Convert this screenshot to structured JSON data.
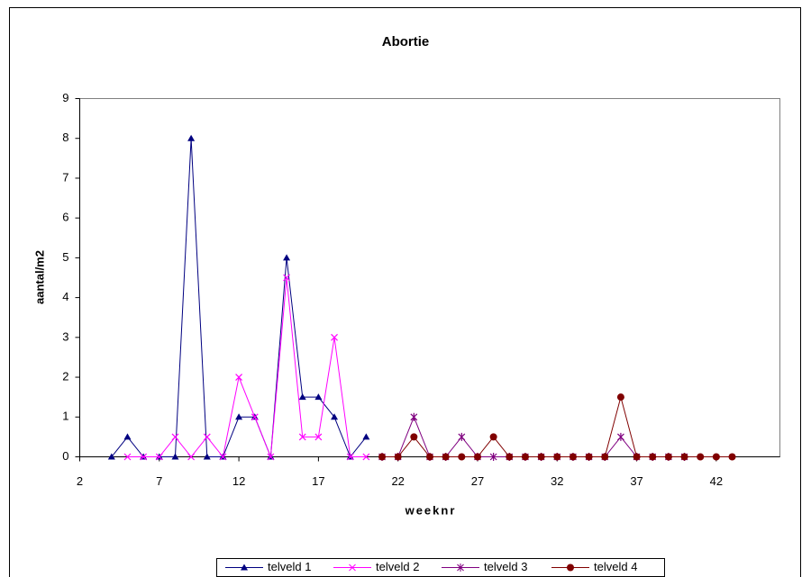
{
  "chart_data": {
    "type": "line",
    "title": "Abortie",
    "x_label": "weeknr",
    "y_label": "aantal/m2",
    "x": [
      4,
      5,
      6,
      7,
      8,
      9,
      10,
      11,
      12,
      13,
      14,
      15,
      16,
      17,
      18,
      19,
      20,
      21,
      22,
      23,
      24,
      25,
      26,
      27,
      28,
      29,
      30,
      31,
      32,
      33,
      34,
      35,
      36,
      37,
      38,
      39,
      40,
      41,
      42,
      43
    ],
    "series": [
      {
        "name": "telveld 1",
        "color": "#000080",
        "marker": "triangle",
        "values": [
          0,
          0.5,
          0,
          0,
          0,
          8,
          0,
          0,
          1,
          1,
          0,
          5,
          1.5,
          1.5,
          1,
          0,
          0.5,
          null,
          null,
          null,
          null,
          null,
          null,
          null,
          null,
          null,
          null,
          null,
          null,
          null,
          null,
          null,
          null,
          null,
          null,
          null,
          null,
          null,
          null,
          null
        ]
      },
      {
        "name": "telveld 2",
        "color": "#ff00ff",
        "marker": "x",
        "values": [
          null,
          0,
          0,
          0,
          0.5,
          0,
          0.5,
          0,
          2,
          1,
          0,
          4.5,
          0.5,
          0.5,
          3,
          0,
          0,
          null,
          null,
          null,
          null,
          null,
          null,
          null,
          null,
          null,
          null,
          null,
          null,
          null,
          null,
          null,
          null,
          null,
          null,
          null,
          null,
          null,
          null,
          null
        ]
      },
      {
        "name": "telveld 3",
        "color": "#800080",
        "marker": "star",
        "values": [
          null,
          null,
          null,
          null,
          null,
          null,
          null,
          null,
          null,
          null,
          null,
          null,
          null,
          null,
          null,
          null,
          null,
          0,
          0,
          1,
          0,
          0,
          0.5,
          0,
          0,
          0,
          0,
          0,
          0,
          0,
          0,
          0,
          0.5,
          0,
          0,
          0,
          0,
          null,
          null,
          null
        ]
      },
      {
        "name": "telveld 4",
        "color": "#800000",
        "marker": "circle",
        "values": [
          null,
          null,
          null,
          null,
          null,
          null,
          null,
          null,
          null,
          null,
          null,
          null,
          null,
          null,
          null,
          null,
          null,
          0,
          0,
          0.5,
          0,
          0,
          0,
          0,
          0.5,
          0,
          0,
          0,
          0,
          0,
          0,
          0,
          1.5,
          0,
          0,
          0,
          0,
          0,
          0,
          0
        ]
      }
    ],
    "xlim": [
      2,
      46
    ],
    "xticks": [
      2,
      7,
      12,
      17,
      22,
      27,
      32,
      37,
      42
    ],
    "ylim": [
      0,
      9
    ],
    "yticks": [
      0,
      1,
      2,
      3,
      4,
      5,
      6,
      7,
      8,
      9
    ],
    "grid": false,
    "legend": "bottom"
  }
}
